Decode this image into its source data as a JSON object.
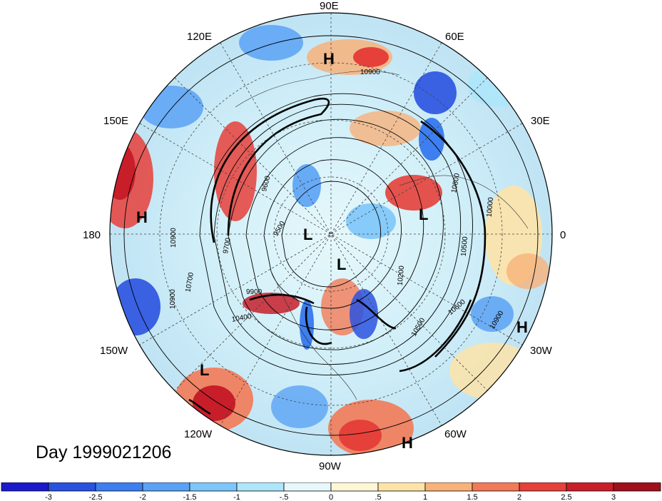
{
  "title": "Day 1999021206",
  "longitude_labels": {
    "top": "90E",
    "upper_left": "120E",
    "upper_right": "60E",
    "left_upper": "150E",
    "right_upper": "30E",
    "left": "180",
    "right": "0",
    "left_lower": "150W",
    "right_lower": "30W",
    "lower_left": "120W",
    "lower_right": "60W",
    "bottom": "90W"
  },
  "pressure_centers": [
    {
      "type": "H",
      "region": "north-central asia"
    },
    {
      "type": "H",
      "region": "north pacific"
    },
    {
      "type": "L",
      "region": "near pole"
    },
    {
      "type": "L",
      "region": "hudson bay"
    },
    {
      "type": "L",
      "region": "scandinavia"
    },
    {
      "type": "L",
      "region": "gulf of alaska"
    },
    {
      "type": "H",
      "region": "mid atlantic"
    },
    {
      "type": "H",
      "region": "subtropical atlantic"
    }
  ],
  "contour_labels": [
    "10900",
    "10900",
    "10900",
    "10900",
    "10800",
    "10700",
    "10600",
    "10500",
    "10500",
    "10400",
    "10200",
    "10000",
    "9900",
    "9700",
    "9600",
    "9500"
  ],
  "colorbar": {
    "ticks": [
      "-3",
      "-2.5",
      "-2",
      "-1.5",
      "-1",
      "-.5",
      "0",
      ".5",
      "1",
      "1.5",
      "2",
      "2.5",
      "3"
    ],
    "colors": [
      "#1a1acc",
      "#2a52e0",
      "#3d7ef0",
      "#5aa2f5",
      "#7cc6fa",
      "#aee6fb",
      "#e6f8fb",
      "#fdf7d6",
      "#fde3a8",
      "#f8b27a",
      "#f27a56",
      "#e6403a",
      "#c81e2a",
      "#a0101c"
    ]
  }
}
